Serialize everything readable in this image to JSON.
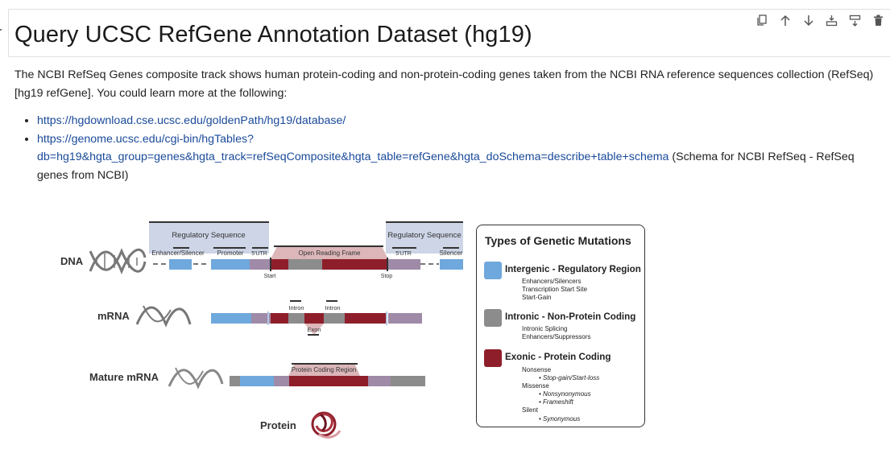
{
  "cell": {
    "title": "Query UCSC RefGene Annotation Dataset (hg19)",
    "toolbar": [
      "copy-icon",
      "arrow-up-icon",
      "arrow-down-icon",
      "insert-above-icon",
      "insert-below-icon",
      "trash-icon"
    ]
  },
  "body": {
    "intro": "The NCBI RefSeq Genes composite track shows human protein-coding and non-protein-coding genes taken from the NCBI RNA reference sequences collection (RefSeq) [hg19 refGene]. You could learn more at the following:",
    "links": [
      {
        "url": "https://hgdownload.cse.ucsc.edu/goldenPath/hg19/database/",
        "suffix": ""
      },
      {
        "url": "https://genome.ucsc.edu/cgi-bin/hgTables?db=hg19&hgta_group=genes&hgta_track=refSeqComposite&hgta_table=refGene&hgta_doSchema=describe+table+schema",
        "suffix": " (Schema for NCBI RefSeq - RefSeq genes from NCBI)"
      }
    ]
  },
  "figure": {
    "rows": {
      "dna": "DNA",
      "mrna": "mRNA",
      "mature": "Mature mRNA",
      "protein": "Protein"
    },
    "dna_labels": {
      "reg_left": "Regulatory Sequence",
      "reg_right": "Regulatory Sequence",
      "enhancer": "Enhancer/Silencer",
      "promoter": "Promoter",
      "utr5": "5'UTR",
      "orf": "Open Reading Frame",
      "utr3": "5'UTR",
      "silencer": "Silencer",
      "start": "Start",
      "stop": "Stop"
    },
    "mrna_labels": {
      "intron1": "Intron",
      "intron2": "Intron",
      "exon": "Exon"
    },
    "mature_labels": {
      "pcr": "Protein Coding Region"
    },
    "colors": {
      "blue": "#6fa8dc",
      "gray": "#8c8c8c",
      "red": "#8e1f2a",
      "mauve": "#9f8aa8",
      "pink": "#dcb6b9",
      "regbg": "#cdd5e6"
    }
  },
  "legend": {
    "title": "Types of Genetic Mutations",
    "intergenic": {
      "label": "Intergenic - Regulatory Region",
      "color": "#6fa8dc",
      "items": [
        "Enhancers/Silencers",
        "Transcription Start Site",
        "Start-Gain"
      ]
    },
    "intronic": {
      "label": "Intronic - Non-Protein Coding",
      "color": "#8c8c8c",
      "items": [
        "Intronic Splicing",
        "Enhancers/Suppressors"
      ]
    },
    "exonic": {
      "label": "Exonic - Protein Coding",
      "color": "#8e1f2a",
      "nonsense": "Nonsense",
      "nonsense_sub": "• Stop-gain/Start-loss",
      "missense": "Missense",
      "missense_sub1": "• Nonsynonymous",
      "missense_sub2": "• Frameshift",
      "silent": "Silent",
      "silent_sub": "• Synonymous"
    }
  }
}
